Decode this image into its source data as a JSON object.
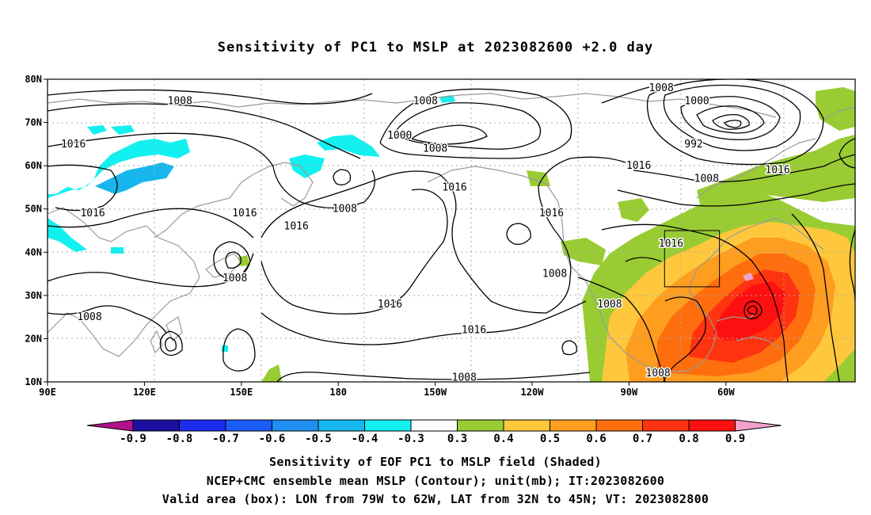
{
  "title": "Sensitivity of PC1 to MSLP at 2023082600 +2.0 day",
  "map": {
    "lon_labels": [
      "90E",
      "120E",
      "150E",
      "180",
      "150W",
      "120W",
      "90W",
      "60W"
    ],
    "lat_labels": [
      "80N",
      "70N",
      "60N",
      "50N",
      "40N",
      "30N",
      "20N",
      "10N"
    ],
    "grid": true,
    "contour_labels": [
      {
        "text": "1008",
        "lon": 131,
        "lat": 75
      },
      {
        "text": "1016",
        "lon": 98,
        "lat": 65
      },
      {
        "text": "1016",
        "lon": 104,
        "lat": 49
      },
      {
        "text": "1016",
        "lon": 151,
        "lat": 49
      },
      {
        "text": "1008",
        "lon": 148,
        "lat": 34
      },
      {
        "text": "1008",
        "lon": 103,
        "lat": 25
      },
      {
        "text": "1008",
        "lon": 182,
        "lat": 50
      },
      {
        "text": "1016",
        "lon": 167,
        "lat": 46
      },
      {
        "text": "1008",
        "lon": 207,
        "lat": 75
      },
      {
        "text": "1000",
        "lon": 199,
        "lat": 67
      },
      {
        "text": "1008",
        "lon": 210,
        "lat": 64
      },
      {
        "text": "1016",
        "lon": 216,
        "lat": 55
      },
      {
        "text": "1016",
        "lon": 196,
        "lat": 28
      },
      {
        "text": "1016",
        "lon": 222,
        "lat": 22
      },
      {
        "text": "1008",
        "lon": 219,
        "lat": 11
      },
      {
        "text": "1016",
        "lon": 246,
        "lat": 49
      },
      {
        "text": "1008",
        "lon": 247,
        "lat": 35
      },
      {
        "text": "1008",
        "lon": 264,
        "lat": 28
      },
      {
        "text": "1008",
        "lon": 280,
        "lat": 78
      },
      {
        "text": "1000",
        "lon": 291,
        "lat": 75
      },
      {
        "text": "992",
        "lon": 290,
        "lat": 65
      },
      {
        "text": "1016",
        "lon": 273,
        "lat": 60
      },
      {
        "text": "1008",
        "lon": 294,
        "lat": 57
      },
      {
        "text": "1016",
        "lon": 316,
        "lat": 59
      },
      {
        "text": "1016",
        "lon": 283,
        "lat": 42
      },
      {
        "text": "1008",
        "lon": 279,
        "lat": 12
      }
    ],
    "box": {
      "lon_min": -79,
      "lon_max": -62,
      "lat_min": 32,
      "lat_max": 45
    }
  },
  "colorbar": {
    "labels": [
      "-0.9",
      "-0.8",
      "-0.7",
      "-0.6",
      "-0.5",
      "-0.4",
      "-0.3",
      "0.3",
      "0.4",
      "0.5",
      "0.6",
      "0.7",
      "0.8",
      "0.9"
    ],
    "colors": [
      "#1a0fa0",
      "#1c2df0",
      "#1a5cf7",
      "#1e8ef0",
      "#17b7ee",
      "#13f0f0",
      "#ffffff",
      "#99cc33",
      "#ffc83c",
      "#ff9d1e",
      "#ff6e0e",
      "#ff3310",
      "#ff1010"
    ],
    "low_arrow_color": "#b0128a",
    "high_arrow_color": "#f2a2cf"
  },
  "captions": {
    "line1": "Sensitivity of EOF PC1 to MSLP field (Shaded)",
    "line2": "NCEP+CMC ensemble mean MSLP (Contour); unit(mb); IT:2023082600",
    "line3": "Valid area (box): LON from 79W to 62W, LAT from 32N to 45N; VT: 2023082800"
  }
}
